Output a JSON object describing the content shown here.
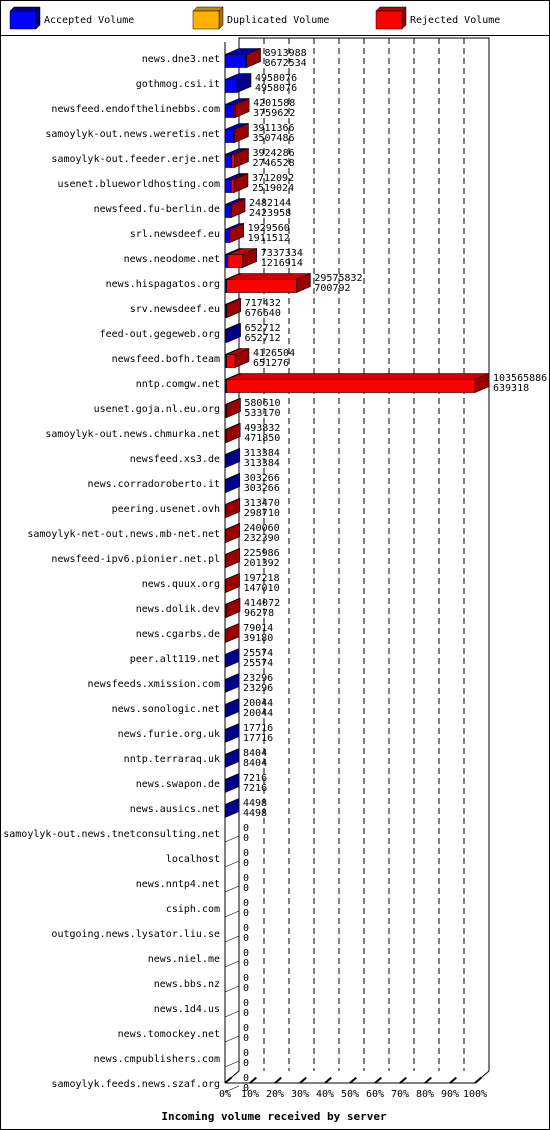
{
  "chart_data": {
    "type": "bar",
    "orientation": "horizontal",
    "stacked": true,
    "title": "",
    "xlabel": "Incoming volume received by server",
    "ylabel": "",
    "xlim": [
      0,
      100
    ],
    "x_unit": "%",
    "x_ticks": [
      "0%",
      "10%",
      "20%",
      "30%",
      "40%",
      "50%",
      "60%",
      "70%",
      "80%",
      "90%",
      "100%"
    ],
    "grid": true,
    "legend_position": "top",
    "legend": [
      {
        "name": "Accepted Volume",
        "color": "#0000ff"
      },
      {
        "name": "Duplicated Volume",
        "color": "#ffb000"
      },
      {
        "name": "Rejected Volume",
        "color": "#ff0000"
      }
    ],
    "categories": [
      "news.dne3.net",
      "gothmog.csi.it",
      "newsfeed.endofthelinebbs.com",
      "samoylyk-out.news.weretis.net",
      "samoylyk-out.feeder.erje.net",
      "usenet.blueworldhosting.com",
      "newsfeed.fu-berlin.de",
      "srl.newsdeef.eu",
      "news.neodome.net",
      "news.hispagatos.org",
      "srv.newsdeef.eu",
      "feed-out.gegeweb.org",
      "newsfeed.bofh.team",
      "nntp.comgw.net",
      "usenet.goja.nl.eu.org",
      "samoylyk-out.news.chmurka.net",
      "newsfeed.xs3.de",
      "news.corradoroberto.it",
      "peering.usenet.ovh",
      "samoylyk-net-out.news.mb-net.net",
      "newsfeed-ipv6.pionier.net.pl",
      "news.quux.org",
      "news.dolik.dev",
      "news.cgarbs.de",
      "peer.alt119.net",
      "newsfeeds.xmission.com",
      "news.sonologic.net",
      "news.furie.org.uk",
      "nntp.terraraq.uk",
      "news.swapon.de",
      "news.ausics.net",
      "samoylyk-out.news.tnetconsulting.net",
      "localhost",
      "news.nntp4.net",
      "csiph.com",
      "outgoing.news.lysator.liu.se",
      "news.niel.me",
      "news.bbs.nz",
      "news.1d4.us",
      "news.tomockey.net",
      "news.cmpublishers.com",
      "samoylyk.feeds.news.szaf.org"
    ],
    "totals": [
      8913988,
      4958076,
      4201588,
      3911366,
      3924286,
      3712092,
      2482144,
      1929560,
      7337334,
      29575832,
      717432,
      652712,
      4126504,
      103565886,
      580610,
      493832,
      313384,
      303266,
      313470,
      240060,
      225986,
      197218,
      414072,
      79014,
      25574,
      23296,
      20044,
      17716,
      8404,
      7216,
      4498,
      0,
      0,
      0,
      0,
      0,
      0,
      0,
      0,
      0,
      0,
      0
    ],
    "accepted": [
      8672534,
      4958076,
      3759622,
      3507486,
      2746528,
      2519024,
      2423958,
      1911512,
      1216914,
      700792,
      676640,
      652712,
      651276,
      639318,
      533170,
      471850,
      313384,
      303266,
      298710,
      232390,
      201392,
      147010,
      96278,
      39180,
      25574,
      23296,
      20044,
      17716,
      8404,
      7216,
      4498,
      0,
      0,
      0,
      0,
      0,
      0,
      0,
      0,
      0,
      0,
      0
    ]
  }
}
